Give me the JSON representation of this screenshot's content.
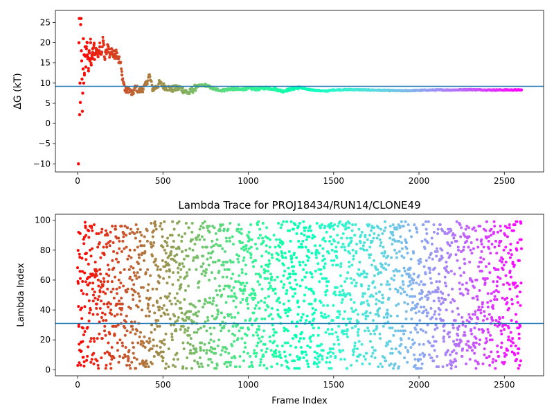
{
  "chart_data": [
    {
      "type": "scatter",
      "title": "",
      "xlabel": "",
      "ylabel": "ΔG (kT)",
      "xlim": [
        -130,
        2730
      ],
      "ylim": [
        -12,
        28
      ],
      "xticks": [
        0,
        500,
        1000,
        1500,
        2000,
        2500
      ],
      "yticks": [
        -10,
        -5,
        0,
        5,
        10,
        15,
        20,
        25
      ],
      "hline": 9.2,
      "colormap": "rainbow",
      "grid": false,
      "series": [
        {
          "x": [
            5,
            8,
            10,
            12,
            14,
            16,
            18,
            20,
            22,
            24,
            26,
            28,
            30,
            32,
            34,
            36,
            38,
            40,
            44,
            48,
            52,
            56,
            60,
            64,
            68,
            72,
            76,
            80,
            84,
            88,
            92,
            96,
            100,
            110,
            120,
            130,
            140,
            150,
            160,
            170,
            180,
            190,
            200,
            210,
            220,
            230,
            240,
            250,
            260,
            270,
            280,
            300,
            320,
            340,
            360,
            380,
            400,
            420,
            440,
            460,
            480,
            500,
            550,
            600,
            650,
            700,
            750,
            800,
            850,
            900,
            950,
            1000,
            1050,
            1100,
            1150,
            1200,
            1250,
            1300,
            1350,
            1400,
            1450,
            1500,
            1600,
            1700,
            1800,
            1900,
            2000,
            2100,
            2200,
            2300,
            2400,
            2500,
            2600
          ],
          "y": [
            -10,
            20,
            26,
            2.2,
            10,
            5.2,
            24.5,
            26,
            18,
            15.5,
            11,
            3,
            7.5,
            13.5,
            21,
            10,
            17,
            12,
            19,
            14,
            18.5,
            20,
            16,
            13,
            18,
            15.5,
            20,
            14.5,
            17,
            18.5,
            16,
            19.5,
            17,
            18.5,
            16.5,
            19,
            17.5,
            20.5,
            16,
            18,
            19,
            17,
            18.5,
            16.5,
            18,
            17.5,
            16,
            15,
            12,
            10,
            8,
            8.5,
            7.2,
            9,
            8,
            8.5,
            9.5,
            12,
            8.5,
            9,
            10,
            9.3,
            8.5,
            8.8,
            7.5,
            9.2,
            9.5,
            8.5,
            8.2,
            8.6,
            8.4,
            8.7,
            8.5,
            8.8,
            8.6,
            8,
            8.5,
            8.9,
            8.4,
            8.2,
            8,
            8.3,
            8.4,
            8.3,
            8.2,
            8.1,
            8.2,
            8.3,
            8.3,
            8.4,
            8.3,
            8.3,
            8.3
          ]
        }
      ]
    },
    {
      "type": "scatter",
      "title": "Lambda Trace for PROJ18434/RUN14/CLONE49",
      "xlabel": "Frame Index",
      "ylabel": "Lambda Index",
      "xlim": [
        -130,
        2730
      ],
      "ylim": [
        -4,
        104
      ],
      "xticks": [
        0,
        500,
        1000,
        1500,
        2000,
        2500
      ],
      "yticks": [
        0,
        20,
        40,
        60,
        80,
        100
      ],
      "hline": 31,
      "colormap": "rainbow",
      "grid": false,
      "x_range": [
        0,
        2600
      ],
      "y_range": [
        1,
        99
      ],
      "approx_points": 2600
    }
  ]
}
